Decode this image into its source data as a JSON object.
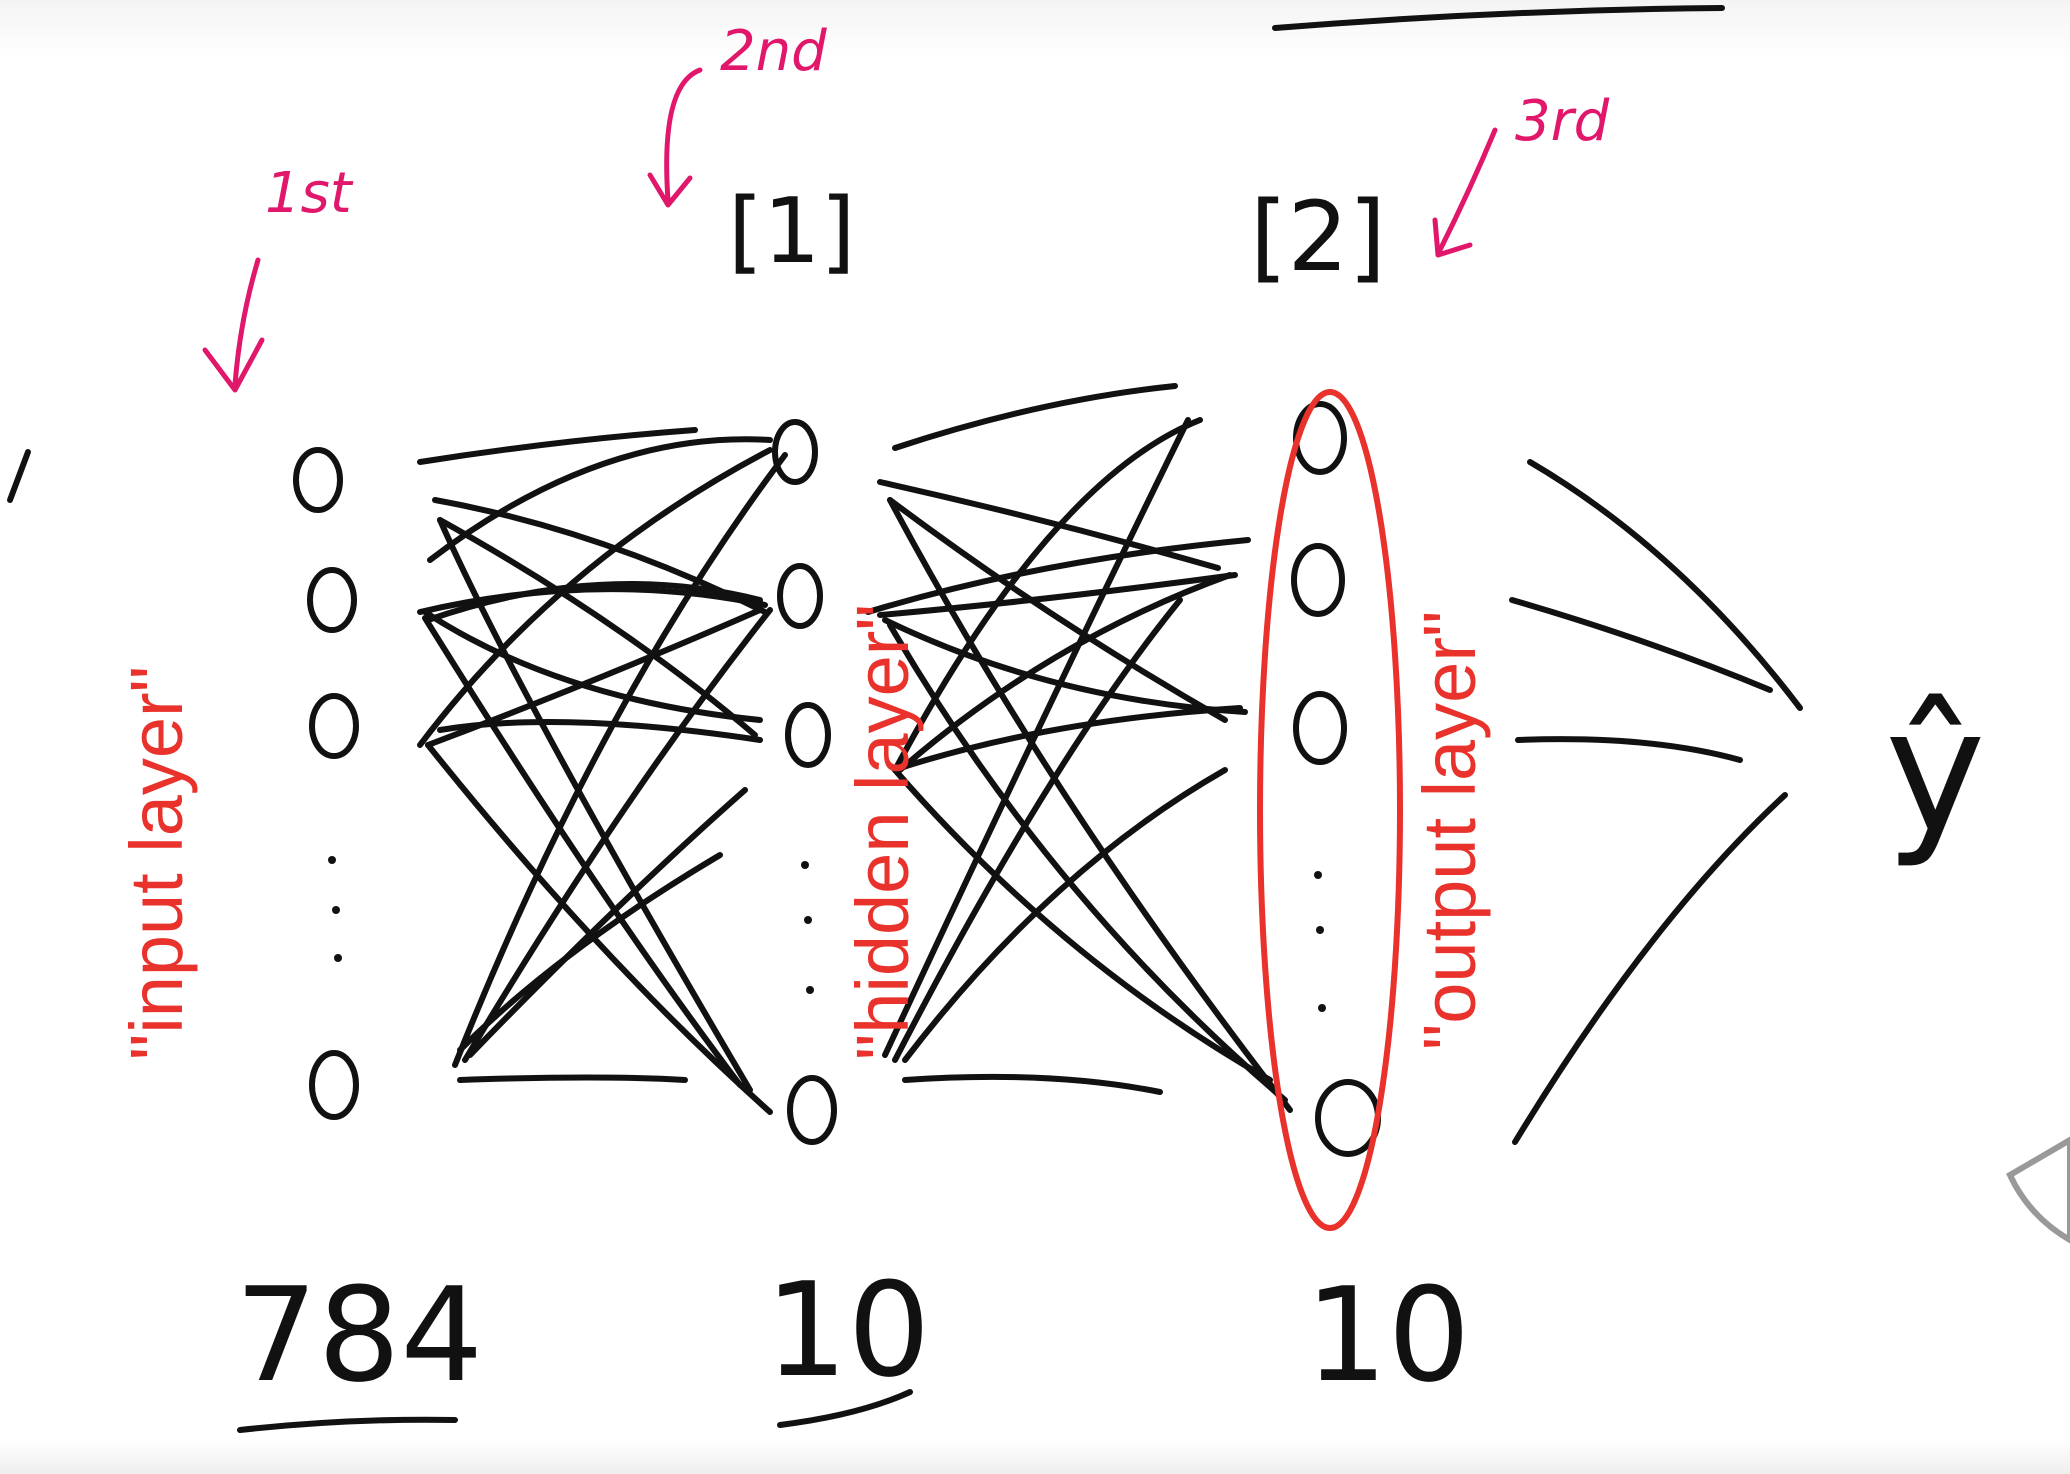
{
  "annotations": {
    "first": "1st",
    "second": "2nd",
    "third": "3rd"
  },
  "layers": {
    "input": {
      "label": "\"input layer\"",
      "size": "784"
    },
    "hidden": {
      "label": "\"hidden layer\"",
      "size": "10",
      "index": "[1]"
    },
    "output": {
      "label": "\"output layer\"",
      "size": "10",
      "index": "[2]"
    }
  },
  "prediction": "ŷ",
  "colors": {
    "ink": "#111111",
    "label_red": "#e8322b",
    "annotation_pink": "#e0176a"
  }
}
